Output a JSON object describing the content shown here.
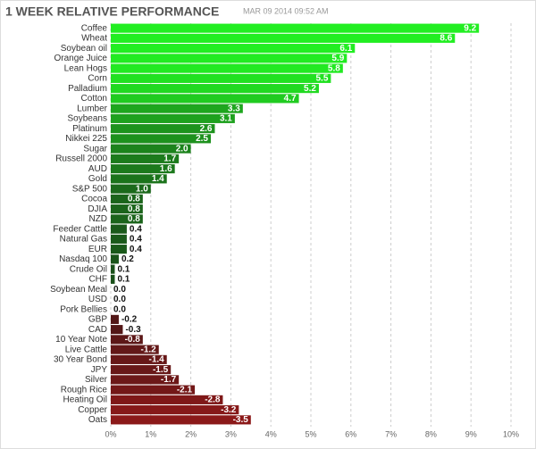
{
  "chart_data": {
    "type": "barh",
    "title": "1 WEEK RELATIVE PERFORMANCE",
    "subtitle": "MAR 09 2014 09:52 AM",
    "categories": [
      "Coffee",
      "Wheat",
      "Soybean oil",
      "Orange Juice",
      "Lean Hogs",
      "Corn",
      "Palladium",
      "Cotton",
      "Lumber",
      "Soybeans",
      "Platinum",
      "Nikkei 225",
      "Sugar",
      "Russell 2000",
      "AUD",
      "Gold",
      "S&P 500",
      "Cocoa",
      "DJIA",
      "NZD",
      "Feeder Cattle",
      "Natural Gas",
      "EUR",
      "Nasdaq 100",
      "Crude Oil",
      "CHF",
      "Soybean Meal",
      "USD",
      "Pork Bellies",
      "GBP",
      "CAD",
      "10 Year Note",
      "Live Cattle",
      "30 Year Bond",
      "JPY",
      "Silver",
      "Rough Rice",
      "Heating Oil",
      "Copper",
      "Oats"
    ],
    "values": [
      9.2,
      8.6,
      6.1,
      5.9,
      5.8,
      5.5,
      5.2,
      4.7,
      3.3,
      3.1,
      2.6,
      2.5,
      2.0,
      1.7,
      1.6,
      1.4,
      1.0,
      0.8,
      0.8,
      0.8,
      0.4,
      0.4,
      0.4,
      0.2,
      0.1,
      0.1,
      0.0,
      0.0,
      0.0,
      -0.2,
      -0.3,
      -0.8,
      -1.2,
      -1.4,
      -1.5,
      -1.7,
      -2.1,
      -2.8,
      -3.2,
      -3.5
    ],
    "value_labels": [
      "9.2",
      "8.6",
      "6.1",
      "5.9",
      "5.8",
      "5.5",
      "5.2",
      "4.7",
      "3.3",
      "3.1",
      "2.6",
      "2.5",
      "2.0",
      "1.7",
      "1.6",
      "1.4",
      "1.0",
      "0.8",
      "0.8",
      "0.8",
      "0.4",
      "0.4",
      "0.4",
      "0.2",
      "0.1",
      "0.1",
      "0.0",
      "0.0",
      "0.0",
      "-0.2",
      "-0.3",
      "-0.8",
      "-1.2",
      "-1.4",
      "-1.5",
      "-1.7",
      "-2.1",
      "-2.8",
      "-3.2",
      "-3.5"
    ],
    "positive_color": "#22ee22",
    "negative_color": "#ee1c1c",
    "xlim": [
      0,
      10
    ],
    "xticks": [
      {
        "value": 0,
        "label": "0%"
      },
      {
        "value": 1,
        "label": "1%"
      },
      {
        "value": 2,
        "label": "2%"
      },
      {
        "value": 3,
        "label": "3%"
      },
      {
        "value": 4,
        "label": "4%"
      },
      {
        "value": 5,
        "label": "5%"
      },
      {
        "value": 6,
        "label": "6%"
      },
      {
        "value": 7,
        "label": "7%"
      },
      {
        "value": 8,
        "label": "8%"
      },
      {
        "value": 9,
        "label": "9%"
      },
      {
        "value": 10,
        "label": "10%"
      }
    ],
    "grid": true
  }
}
